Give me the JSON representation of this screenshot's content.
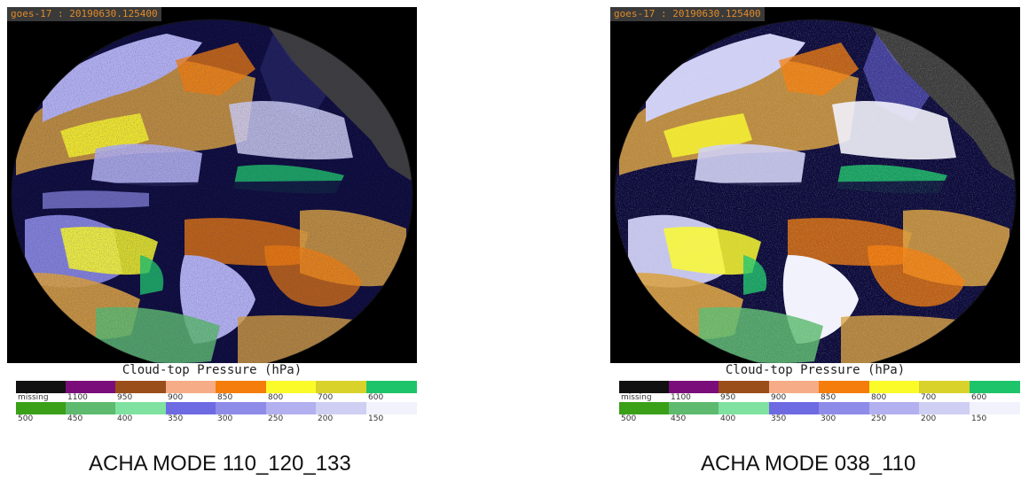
{
  "panels": [
    {
      "id": "left",
      "sat_label": "goes-17 : 20190630.125400",
      "colorbar_title": "Cloud-top Pressure (hPa)",
      "caption": "ACHA MODE 110_120_133"
    },
    {
      "id": "right",
      "sat_label": "goes-17 : 20190630.125400",
      "colorbar_title": "Cloud-top Pressure (hPa)",
      "caption": "ACHA MODE 038_110"
    }
  ],
  "legend": {
    "row1": {
      "labels": [
        "missing",
        "1100",
        "950",
        "900",
        "850",
        "800",
        "700",
        "600"
      ],
      "colors": [
        "#111111",
        "#7a0d7a",
        "#9a4e1a",
        "#f6ac86",
        "#f47d0c",
        "#fbfb2a",
        "#d8d22a",
        "#1ec46a"
      ]
    },
    "row2": {
      "labels": [
        "500",
        "450",
        "400",
        "350",
        "300",
        "250",
        "200",
        "150"
      ],
      "colors": [
        "#3aa018",
        "#5dba6e",
        "#7fe2a0",
        "#6e6ae2",
        "#8e8ce8",
        "#b2b0ee",
        "#cfcff4",
        "#f2f2fc"
      ]
    }
  },
  "image_colors": {
    "background": "#000000",
    "land": "#3c3c3c",
    "clear": "#0d0b3a"
  }
}
